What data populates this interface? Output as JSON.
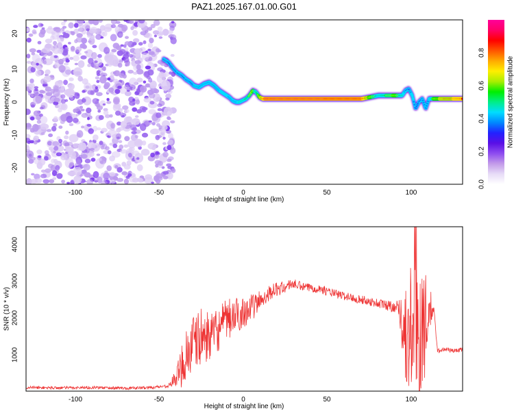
{
  "title": "PAZ1.2025.167.01.00.G01",
  "colors": {
    "snr_line": "#ee3333",
    "noise": [
      "#7733ee",
      "#9966ee",
      "#bb99ee",
      "#ddccf5"
    ],
    "colormap": [
      "#ffffff",
      "#e7dcf7",
      "#c39be9",
      "#8e4cf0",
      "#5a0fe6",
      "#2222ff",
      "#0088ff",
      "#00ddff",
      "#00ee88",
      "#00ee00",
      "#aaee00",
      "#ffee00",
      "#ffaa00",
      "#ff5500",
      "#ff0000",
      "#ff0066",
      "#ff0099"
    ]
  },
  "chart_data": [
    {
      "type": "heatmap",
      "title": "PAZ1.2025.167.01.00.G01",
      "xlabel": "Height of straight line (km)",
      "ylabel": "Frequency (Hz)",
      "xlim": [
        -130,
        130
      ],
      "ylim": [
        -25,
        25
      ],
      "xticks": [
        "-100",
        "-50",
        "0",
        "50",
        "100"
      ],
      "yticks": [
        "20",
        "10",
        "0",
        "-10",
        "-20"
      ],
      "colorbar": {
        "label": "Normalized spectral amplitude",
        "range": [
          0,
          1
        ],
        "ticks": [
          "0.0",
          "0.2",
          "0.4",
          "0.6",
          "0.8"
        ]
      },
      "noise_region_x": [
        -130,
        -42
      ],
      "ridge": {
        "x": [
          -48,
          -45,
          -42,
          -40,
          -37,
          -35,
          -32,
          -30,
          -27,
          -24,
          -21,
          -18,
          -15,
          -12,
          -9,
          -7,
          -5,
          -3,
          -1,
          1,
          3,
          5,
          7,
          9,
          11,
          13,
          16,
          20,
          30,
          50,
          70,
          80,
          85,
          90,
          94,
          96,
          98,
          100,
          102,
          104,
          106,
          108,
          110,
          113,
          120,
          130
        ],
        "y": [
          13,
          12,
          10,
          9,
          8,
          7,
          6,
          5,
          4.5,
          5.5,
          6,
          5,
          3.5,
          2.5,
          1.5,
          0.5,
          0,
          0,
          0.5,
          1,
          2,
          3.5,
          3,
          1.5,
          1,
          1,
          1,
          1,
          1,
          1,
          1,
          2,
          2,
          2,
          2,
          3.5,
          4,
          2,
          -2,
          0,
          1,
          -2,
          1,
          1,
          1,
          1
        ],
        "amplitude": [
          0.25,
          0.3,
          0.3,
          0.35,
          0.3,
          0.35,
          0.3,
          0.35,
          0.4,
          0.4,
          0.35,
          0.4,
          0.4,
          0.45,
          0.4,
          0.4,
          0.35,
          0.5,
          0.5,
          0.55,
          0.6,
          0.7,
          0.5,
          0.7,
          0.85,
          0.95,
          0.9,
          0.95,
          0.95,
          0.9,
          0.9,
          0.5,
          0.6,
          0.7,
          0.5,
          0.35,
          0.3,
          0.45,
          0.3,
          0.3,
          0.35,
          0.4,
          0.4,
          0.7,
          0.8,
          0.85
        ]
      }
    },
    {
      "type": "line",
      "xlabel": "Height of straight line (km)",
      "ylabel": "SNR (10 * v/v)",
      "xlim": [
        -130,
        130
      ],
      "ylim": [
        0,
        4500
      ],
      "xticks": [
        "-100",
        "-50",
        "0",
        "50",
        "100"
      ],
      "yticks": [
        "1000",
        "2000",
        "3000",
        "4000"
      ],
      "series": [
        {
          "envelope_x": [
            -130,
            -110,
            -90,
            -70,
            -55,
            -45,
            -40,
            -35,
            -30,
            -25,
            -20,
            -15,
            -10,
            -5,
            0,
            5,
            10,
            15,
            20,
            25,
            28,
            35,
            45,
            55,
            65,
            75,
            85,
            92,
            96,
            98,
            100,
            102,
            104,
            106,
            108,
            110,
            113,
            115,
            120,
            125,
            130
          ],
          "envelope_y": [
            100,
            90,
            100,
            80,
            100,
            150,
            400,
            1000,
            1300,
            1500,
            1500,
            1700,
            1950,
            2050,
            2200,
            2300,
            2500,
            2700,
            2800,
            2850,
            2950,
            2850,
            2800,
            2650,
            2550,
            2450,
            2350,
            2300,
            1500,
            1200,
            2000,
            2600,
            1400,
            2000,
            1700,
            2200,
            2200,
            1100,
            1150,
            1100,
            1150
          ],
          "noise_amplitude": [
            40,
            40,
            40,
            40,
            40,
            50,
            300,
            900,
            800,
            800,
            600,
            600,
            600,
            500,
            450,
            350,
            300,
            200,
            200,
            150,
            150,
            120,
            120,
            120,
            120,
            120,
            150,
            200,
            1400,
            1400,
            2500,
            2500,
            2500,
            1800,
            1500,
            800,
            80,
            60,
            60,
            60,
            60
          ]
        }
      ]
    }
  ]
}
